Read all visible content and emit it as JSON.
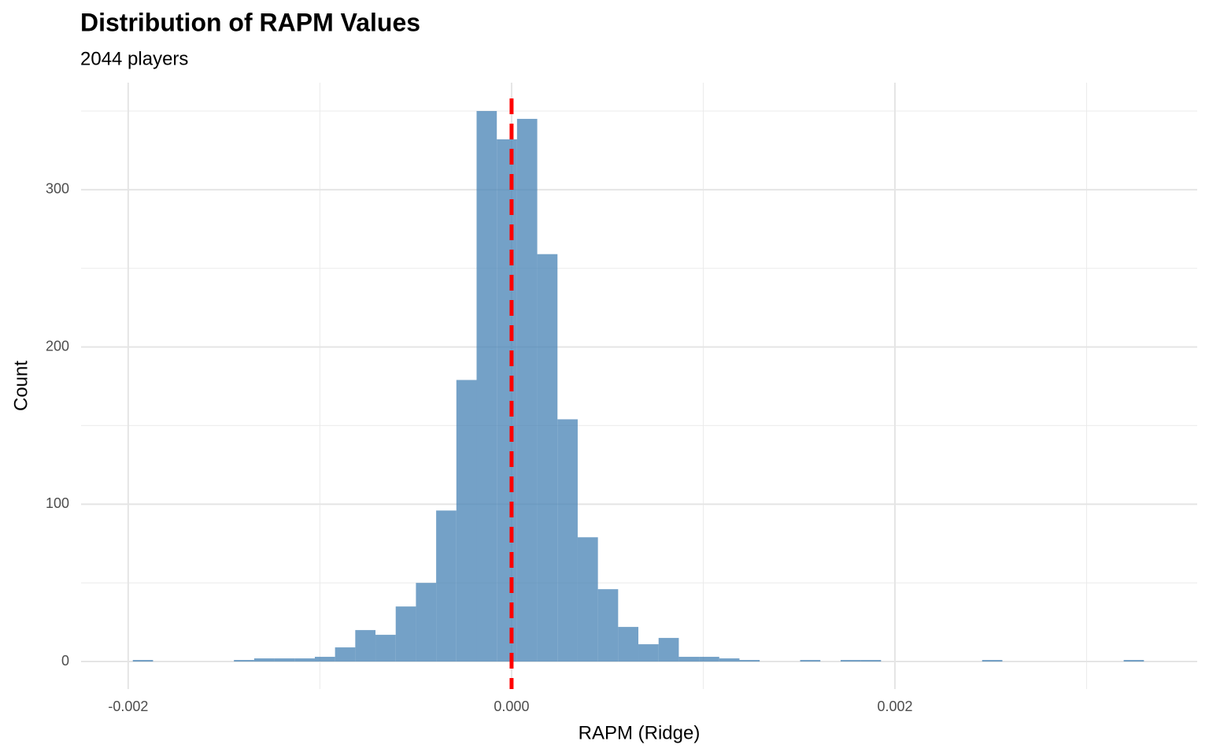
{
  "chart_data": {
    "type": "histogram",
    "title": "Distribution of RAPM Values",
    "subtitle": "2044 players",
    "x_label": "RAPM (Ridge)",
    "y_label": "Count",
    "bins": [
      -0.001976,
      -0.0018705,
      -0.001765,
      -0.0016595,
      -0.001554,
      -0.0014485,
      -0.001343,
      -0.0012375,
      -0.001132,
      -0.0010265,
      -0.000921,
      -0.0008155,
      -0.00071,
      -0.0006045,
      -0.000499,
      -0.0003935,
      -0.000288,
      -0.0001825,
      -7.7e-05,
      2.85e-05,
      0.000134,
      0.0002395,
      0.000345,
      0.0004505,
      0.000556,
      0.0006615,
      0.000767,
      0.0008725,
      0.000978,
      0.0010835,
      0.001189,
      0.0012945,
      0.0014,
      0.0015055,
      0.001611,
      0.0017165,
      0.001822,
      0.0019275,
      0.002033,
      0.0021385,
      0.002244,
      0.0023495,
      0.002455,
      0.0025605,
      0.002666,
      0.0027715,
      0.002877,
      0.0029825,
      0.003088,
      0.0031935,
      0.003299
    ],
    "values": [
      1,
      0,
      0,
      0,
      0,
      1,
      2,
      2,
      2,
      3,
      9,
      20,
      17,
      35,
      50,
      96,
      179,
      350,
      332,
      345,
      259,
      154,
      79,
      46,
      22,
      11,
      15,
      3,
      3,
      2,
      1,
      0,
      0,
      1,
      0,
      1,
      1,
      0,
      0,
      0,
      0,
      0,
      1,
      0,
      0,
      0,
      0,
      0,
      0,
      1
    ],
    "color": "#4682b4",
    "xlim": [
      -0.002246,
      0.003577
    ],
    "ylim": [
      -17.5,
      368
    ],
    "xticks": [
      {
        "value": -0.002,
        "label": "-0.002"
      },
      {
        "value": 0,
        "label": "0.000"
      },
      {
        "value": 0.002,
        "label": "0.002"
      }
    ],
    "xminor": [
      -0.001,
      0.001,
      0.003
    ],
    "yticks": [
      0,
      100,
      200,
      300
    ],
    "yminor": [
      50,
      150,
      250,
      350
    ],
    "grid": true,
    "vline": {
      "value": 0,
      "color": "#ff0000",
      "dashed": true
    }
  }
}
